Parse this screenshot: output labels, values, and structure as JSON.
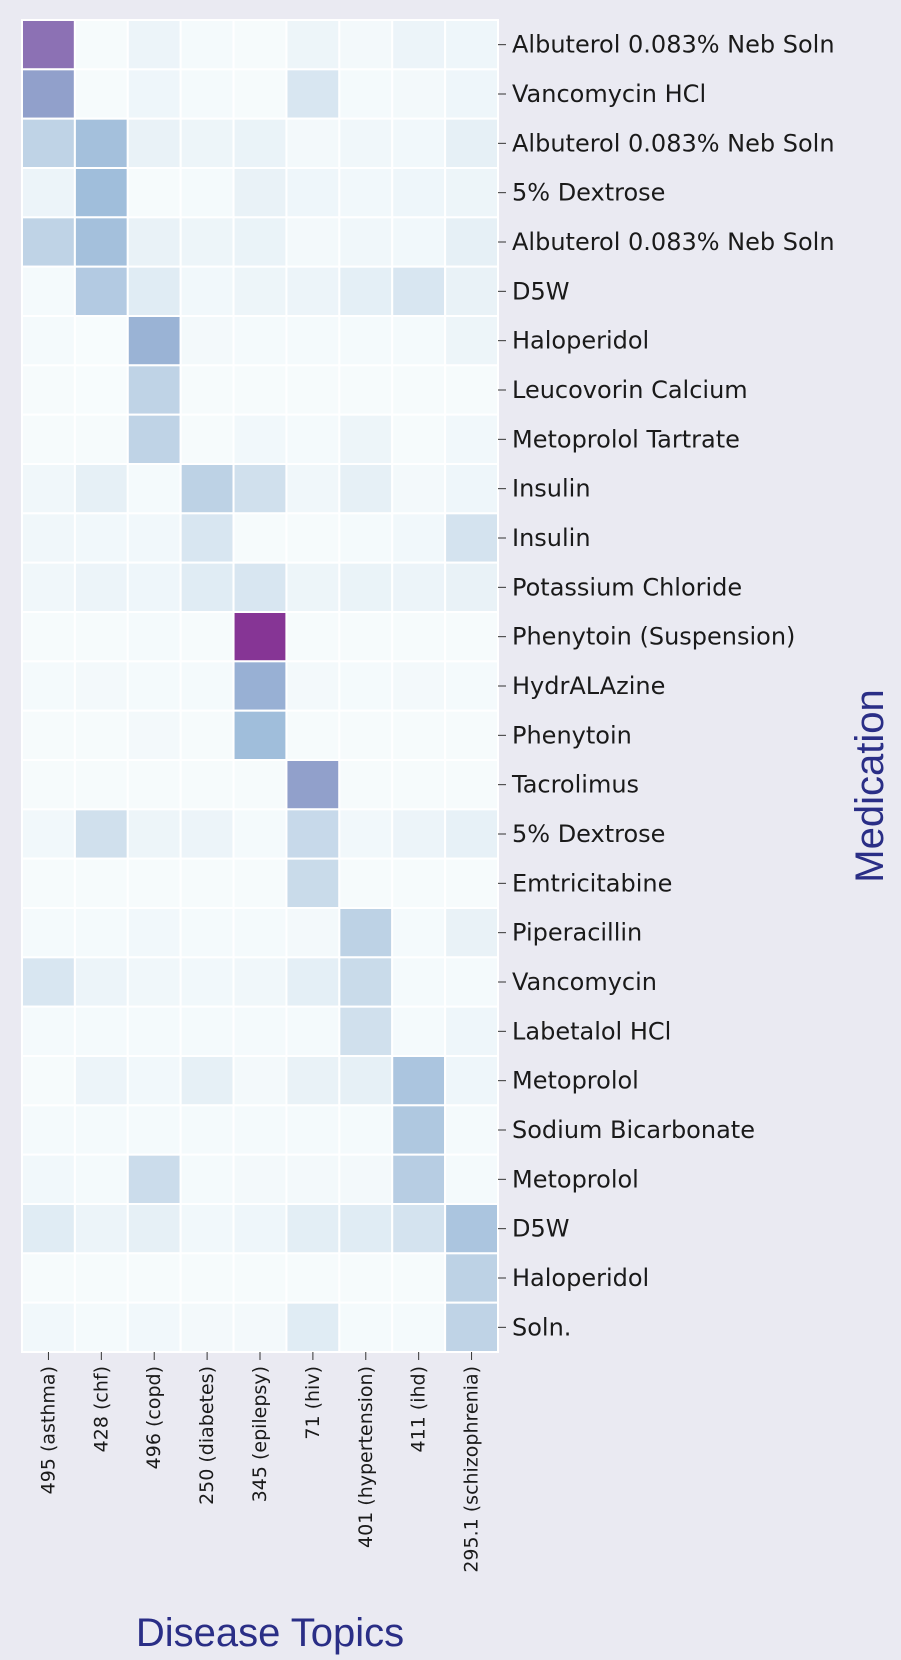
{
  "chart_data": {
    "type": "heatmap",
    "xlabel": "Disease Topics",
    "ylabel": "Medication",
    "title": "",
    "colormap": "BuPu",
    "colormap_low": "#f7fcfd",
    "colormap_high": "#8b2c94",
    "background": "#eaeaf2",
    "axis_title_color": "#2a2e86",
    "cell_border_color": "#ffffff",
    "x_categories": [
      "495 (asthma)",
      "428 (chf)",
      "496 (copd)",
      "250 (diabetes)",
      "345 (epilepsy)",
      "71 (hiv)",
      "401 (hypertension)",
      "411 (ihd)",
      "295.1 (schizophrenia)"
    ],
    "y_categories": [
      "Albuterol 0.083% Neb Soln",
      "Vancomycin HCl",
      "Albuterol 0.083% Neb Soln",
      "5% Dextrose",
      "Albuterol 0.083% Neb Soln",
      "D5W",
      "Haloperidol",
      "Leucovorin Calcium",
      "Metoprolol Tartrate",
      "Insulin",
      "Insulin",
      "Potassium Chloride",
      "Phenytoin (Suspension)",
      "HydrALAzine",
      "Phenytoin",
      "Tacrolimus",
      "5% Dextrose",
      "Emtricitabine",
      "Piperacillin",
      "Vancomycin",
      "Labetalol HCl",
      "Metoprolol",
      "Sodium Bicarbonate",
      "Metoprolol",
      "D5W",
      "Haloperidol",
      "Soln."
    ],
    "values": [
      [
        0.78,
        0.01,
        0.08,
        0.02,
        0.01,
        0.07,
        0.03,
        0.08,
        0.06
      ],
      [
        0.6,
        0.01,
        0.06,
        0.02,
        0.01,
        0.2,
        0.02,
        0.03,
        0.06
      ],
      [
        0.32,
        0.45,
        0.1,
        0.07,
        0.09,
        0.03,
        0.05,
        0.04,
        0.12
      ],
      [
        0.08,
        0.47,
        0.01,
        0.02,
        0.1,
        0.06,
        0.04,
        0.06,
        0.07
      ],
      [
        0.32,
        0.45,
        0.1,
        0.07,
        0.09,
        0.03,
        0.05,
        0.04,
        0.12
      ],
      [
        0.02,
        0.38,
        0.16,
        0.04,
        0.07,
        0.08,
        0.13,
        0.2,
        0.1
      ],
      [
        0.02,
        0.0,
        0.52,
        0.03,
        0.02,
        0.02,
        0.02,
        0.02,
        0.07
      ],
      [
        0.01,
        0.0,
        0.32,
        0.01,
        0.01,
        0.01,
        0.01,
        0.01,
        0.01
      ],
      [
        0.01,
        0.01,
        0.32,
        0.01,
        0.04,
        0.02,
        0.07,
        0.01,
        0.04
      ],
      [
        0.05,
        0.12,
        0.02,
        0.33,
        0.24,
        0.05,
        0.12,
        0.03,
        0.06
      ],
      [
        0.05,
        0.04,
        0.04,
        0.2,
        0.01,
        0.01,
        0.02,
        0.04,
        0.22
      ],
      [
        0.05,
        0.08,
        0.06,
        0.16,
        0.2,
        0.07,
        0.09,
        0.08,
        0.1
      ],
      [
        0.01,
        0.01,
        0.02,
        0.01,
        1.0,
        0.01,
        0.01,
        0.01,
        0.01
      ],
      [
        0.02,
        0.03,
        0.02,
        0.02,
        0.53,
        0.03,
        0.02,
        0.03,
        0.02
      ],
      [
        0.01,
        0.01,
        0.03,
        0.01,
        0.47,
        0.01,
        0.01,
        0.01,
        0.01
      ],
      [
        0.01,
        0.01,
        0.01,
        0.01,
        0.01,
        0.6,
        0.01,
        0.01,
        0.01
      ],
      [
        0.04,
        0.24,
        0.07,
        0.08,
        0.02,
        0.28,
        0.04,
        0.08,
        0.11
      ],
      [
        0.01,
        0.01,
        0.01,
        0.01,
        0.01,
        0.27,
        0.01,
        0.01,
        0.01
      ],
      [
        0.02,
        0.02,
        0.04,
        0.02,
        0.02,
        0.03,
        0.33,
        0.02,
        0.1
      ],
      [
        0.2,
        0.08,
        0.05,
        0.04,
        0.05,
        0.13,
        0.27,
        0.02,
        0.02
      ],
      [
        0.02,
        0.02,
        0.02,
        0.02,
        0.02,
        0.02,
        0.24,
        0.02,
        0.06
      ],
      [
        0.01,
        0.08,
        0.04,
        0.12,
        0.03,
        0.1,
        0.12,
        0.42,
        0.06
      ],
      [
        0.02,
        0.02,
        0.02,
        0.02,
        0.02,
        0.02,
        0.02,
        0.4,
        0.02
      ],
      [
        0.04,
        0.02,
        0.26,
        0.02,
        0.03,
        0.03,
        0.03,
        0.36,
        0.02
      ],
      [
        0.16,
        0.08,
        0.12,
        0.04,
        0.06,
        0.14,
        0.16,
        0.22,
        0.42
      ],
      [
        0.01,
        0.01,
        0.01,
        0.01,
        0.01,
        0.01,
        0.01,
        0.01,
        0.33
      ],
      [
        0.04,
        0.02,
        0.04,
        0.03,
        0.03,
        0.16,
        0.02,
        0.02,
        0.32
      ]
    ]
  }
}
